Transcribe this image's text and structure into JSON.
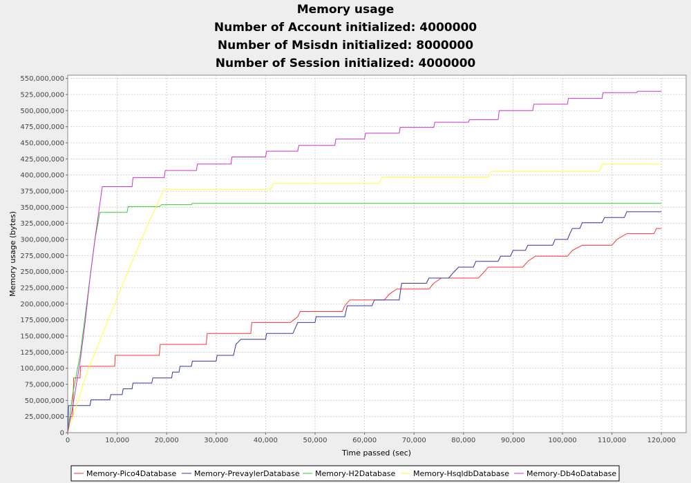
{
  "chart_data": {
    "type": "line",
    "title": [
      "Memory usage",
      "Number of Account initialized: 4000000",
      "Number of Msisdn initialized: 8000000",
      "Number of Session initialized: 4000000"
    ],
    "xlabel": "Time passed (sec)",
    "ylabel": "Memory usage (bytes)",
    "xlim": [
      0,
      125000
    ],
    "ylim": [
      0,
      555000000
    ],
    "x_ticks": [
      0,
      10000,
      20000,
      30000,
      40000,
      50000,
      60000,
      70000,
      80000,
      90000,
      100000,
      110000,
      120000
    ],
    "x_tick_labels": [
      "0",
      "10,000",
      "20,000",
      "30,000",
      "40,000",
      "50,000",
      "60,000",
      "70,000",
      "80,000",
      "90,000",
      "100,000",
      "110,000",
      "120,000"
    ],
    "y_ticks": [
      0,
      25000000,
      50000000,
      75000000,
      100000000,
      125000000,
      150000000,
      175000000,
      200000000,
      225000000,
      250000000,
      275000000,
      300000000,
      325000000,
      350000000,
      375000000,
      400000000,
      425000000,
      450000000,
      475000000,
      500000000,
      525000000,
      550000000
    ],
    "y_tick_labels": [
      "0",
      "25,000,000",
      "50,000,000",
      "75,000,000",
      "100,000,000",
      "125,000,000",
      "150,000,000",
      "175,000,000",
      "200,000,000",
      "225,000,000",
      "250,000,000",
      "275,000,000",
      "300,000,000",
      "325,000,000",
      "350,000,000",
      "375,000,000",
      "400,000,000",
      "425,000,000",
      "450,000,000",
      "475,000,000",
      "500,000,000",
      "525,000,000",
      "550,000,000"
    ],
    "grid": true,
    "legend_position": "bottom",
    "series": [
      {
        "name": "Memory-Pico4Database",
        "color": "#ff3333",
        "points": [
          [
            0,
            0
          ],
          [
            500,
            25000000
          ],
          [
            1000,
            25000000
          ],
          [
            1200,
            85000000
          ],
          [
            2500,
            85000000
          ],
          [
            2600,
            103000000
          ],
          [
            9500,
            103000000
          ],
          [
            9600,
            120000000
          ],
          [
            18500,
            120000000
          ],
          [
            18700,
            137000000
          ],
          [
            28000,
            137000000
          ],
          [
            28200,
            154000000
          ],
          [
            37000,
            154000000
          ],
          [
            37200,
            171000000
          ],
          [
            45000,
            171000000
          ],
          [
            46500,
            180000000
          ],
          [
            47000,
            188000000
          ],
          [
            55500,
            188000000
          ],
          [
            56000,
            197000000
          ],
          [
            57000,
            206000000
          ],
          [
            64000,
            206000000
          ],
          [
            65000,
            215000000
          ],
          [
            66500,
            223000000
          ],
          [
            73000,
            223000000
          ],
          [
            74000,
            232000000
          ],
          [
            75500,
            240000000
          ],
          [
            83000,
            240000000
          ],
          [
            84000,
            248000000
          ],
          [
            85000,
            257000000
          ],
          [
            92000,
            257000000
          ],
          [
            93000,
            266000000
          ],
          [
            94500,
            274000000
          ],
          [
            101000,
            274000000
          ],
          [
            102000,
            283000000
          ],
          [
            104000,
            291000000
          ],
          [
            110000,
            291000000
          ],
          [
            111000,
            300000000
          ],
          [
            113000,
            309000000
          ],
          [
            118500,
            309000000
          ],
          [
            119000,
            317000000
          ],
          [
            120000,
            317000000
          ]
        ]
      },
      {
        "name": "Memory-PrevaylerDatabase",
        "color": "#3333aa",
        "points": [
          [
            0,
            0
          ],
          [
            200,
            42000000
          ],
          [
            4500,
            42000000
          ],
          [
            4700,
            51000000
          ],
          [
            8500,
            51000000
          ],
          [
            8700,
            59000000
          ],
          [
            11000,
            59000000
          ],
          [
            11200,
            68000000
          ],
          [
            13000,
            68000000
          ],
          [
            13200,
            77000000
          ],
          [
            17000,
            77000000
          ],
          [
            17200,
            85000000
          ],
          [
            21000,
            85000000
          ],
          [
            21200,
            94000000
          ],
          [
            22500,
            94000000
          ],
          [
            22700,
            103000000
          ],
          [
            25000,
            103000000
          ],
          [
            25200,
            111000000
          ],
          [
            30000,
            111000000
          ],
          [
            30200,
            120000000
          ],
          [
            33500,
            120000000
          ],
          [
            34000,
            137000000
          ],
          [
            35000,
            145000000
          ],
          [
            40000,
            145000000
          ],
          [
            40200,
            154000000
          ],
          [
            45500,
            154000000
          ],
          [
            46500,
            171000000
          ],
          [
            50000,
            171000000
          ],
          [
            50200,
            180000000
          ],
          [
            56000,
            180000000
          ],
          [
            56500,
            197000000
          ],
          [
            61500,
            197000000
          ],
          [
            62000,
            206000000
          ],
          [
            67000,
            206000000
          ],
          [
            67500,
            232000000
          ],
          [
            72500,
            232000000
          ],
          [
            73000,
            240000000
          ],
          [
            77000,
            240000000
          ],
          [
            78000,
            249000000
          ],
          [
            79000,
            257000000
          ],
          [
            82000,
            257000000
          ],
          [
            82500,
            266000000
          ],
          [
            87000,
            266000000
          ],
          [
            87500,
            274000000
          ],
          [
            89500,
            274000000
          ],
          [
            90000,
            283000000
          ],
          [
            92500,
            283000000
          ],
          [
            93000,
            291000000
          ],
          [
            98000,
            291000000
          ],
          [
            98500,
            300000000
          ],
          [
            101000,
            300000000
          ],
          [
            101500,
            309000000
          ],
          [
            102000,
            317000000
          ],
          [
            103500,
            317000000
          ],
          [
            104000,
            326000000
          ],
          [
            108000,
            326000000
          ],
          [
            108500,
            334000000
          ],
          [
            112500,
            334000000
          ],
          [
            113000,
            343000000
          ],
          [
            120000,
            343000000
          ]
        ]
      },
      {
        "name": "Memory-H2Database",
        "color": "#33cc33",
        "points": [
          [
            0,
            0
          ],
          [
            1000,
            60000000
          ],
          [
            2500,
            120000000
          ],
          [
            3500,
            180000000
          ],
          [
            4500,
            240000000
          ],
          [
            5500,
            300000000
          ],
          [
            6500,
            342000000
          ],
          [
            12000,
            342000000
          ],
          [
            12200,
            351000000
          ],
          [
            18500,
            351000000
          ],
          [
            19000,
            354000000
          ],
          [
            25000,
            354000000
          ],
          [
            25200,
            356000000
          ],
          [
            120000,
            356000000
          ]
        ]
      },
      {
        "name": "Memory-HsqldbDatabase",
        "color": "#ffff33",
        "points": [
          [
            0,
            0
          ],
          [
            4000,
            95000000
          ],
          [
            10000,
            210000000
          ],
          [
            16000,
            320000000
          ],
          [
            19000,
            370000000
          ],
          [
            19500,
            378000000
          ],
          [
            41000,
            378000000
          ],
          [
            41500,
            387000000
          ],
          [
            63000,
            387000000
          ],
          [
            63500,
            397000000
          ],
          [
            85000,
            397000000
          ],
          [
            85500,
            406000000
          ],
          [
            107500,
            406000000
          ],
          [
            108000,
            417000000
          ],
          [
            120000,
            417000000
          ]
        ]
      },
      {
        "name": "Memory-Db4oDatabase",
        "color": "#cc33cc",
        "points": [
          [
            0,
            0
          ],
          [
            1000,
            40000000
          ],
          [
            2500,
            110000000
          ],
          [
            3500,
            170000000
          ],
          [
            4500,
            240000000
          ],
          [
            5500,
            300000000
          ],
          [
            6500,
            355000000
          ],
          [
            7000,
            382000000
          ],
          [
            13000,
            382000000
          ],
          [
            13200,
            396000000
          ],
          [
            19500,
            396000000
          ],
          [
            19700,
            407000000
          ],
          [
            26000,
            407000000
          ],
          [
            26200,
            417000000
          ],
          [
            33000,
            417000000
          ],
          [
            33200,
            428000000
          ],
          [
            40000,
            428000000
          ],
          [
            40200,
            437000000
          ],
          [
            46500,
            437000000
          ],
          [
            46700,
            446000000
          ],
          [
            54000,
            446000000
          ],
          [
            54200,
            456000000
          ],
          [
            60000,
            456000000
          ],
          [
            60200,
            465000000
          ],
          [
            67000,
            465000000
          ],
          [
            67200,
            474000000
          ],
          [
            74000,
            474000000
          ],
          [
            74200,
            482000000
          ],
          [
            81000,
            482000000
          ],
          [
            81200,
            486000000
          ],
          [
            87000,
            486000000
          ],
          [
            87200,
            500000000
          ],
          [
            94000,
            500000000
          ],
          [
            94200,
            510000000
          ],
          [
            101000,
            510000000
          ],
          [
            101200,
            519000000
          ],
          [
            108000,
            519000000
          ],
          [
            108200,
            528000000
          ],
          [
            115000,
            528000000
          ],
          [
            115200,
            530000000
          ],
          [
            120000,
            530000000
          ]
        ]
      }
    ]
  }
}
